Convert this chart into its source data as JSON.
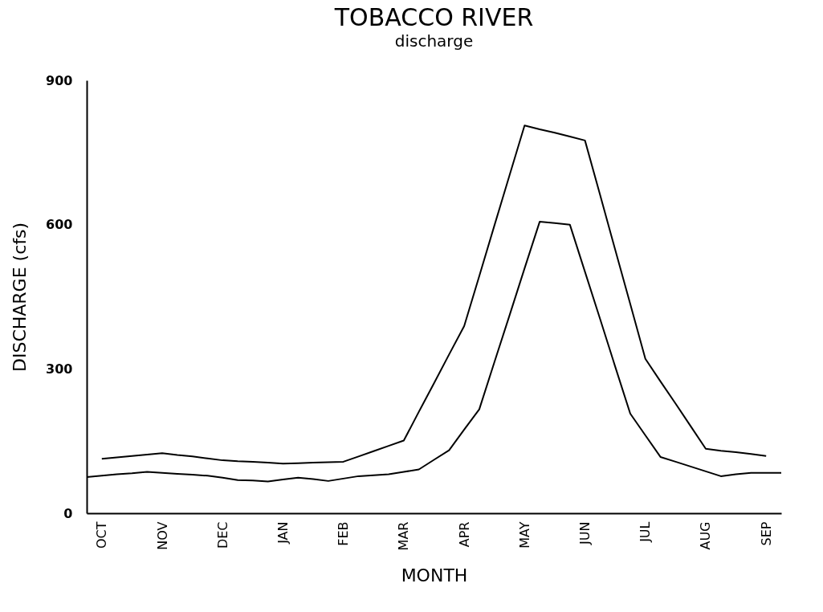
{
  "chart_data": {
    "type": "line",
    "title": "TOBACCO RIVER",
    "subtitle": "discharge",
    "xlabel": "MONTH",
    "ylabel": "DISCHARGE (cfs)",
    "categories": [
      null,
      "OCT",
      null,
      null,
      null,
      "NOV",
      null,
      null,
      null,
      "DEC",
      null,
      null,
      null,
      "JAN",
      null,
      null,
      null,
      "FEB",
      null,
      null,
      null,
      "MAR",
      null,
      null,
      null,
      "APR",
      null,
      null,
      null,
      "MAY",
      null,
      null,
      null,
      "JUN",
      null,
      null,
      null,
      "JUL",
      null,
      null,
      null,
      "AUG",
      null,
      null,
      null,
      "SEP",
      null
    ],
    "ylim": [
      0,
      900
    ],
    "yticks": [
      0,
      300,
      600,
      900
    ],
    "grid": false,
    "line_style": "solid",
    "series": [
      {
        "color": "#000000",
        "values": [
          null,
          113,
          116,
          119,
          122,
          125,
          121,
          118,
          114,
          110,
          108,
          107,
          105,
          103,
          104,
          105,
          106,
          107,
          118,
          129,
          140,
          151,
          211,
          270,
          330,
          389,
          493,
          598,
          702,
          806,
          798,
          791,
          783,
          775,
          662,
          548,
          435,
          321,
          274,
          228,
          181,
          134,
          130,
          127,
          123,
          119,
          null
        ]
      },
      {
        "color": "#000000",
        "values": [
          75,
          78,
          81,
          83,
          86,
          84,
          82,
          80,
          78,
          74,
          69,
          68,
          66,
          70,
          74,
          71,
          67,
          72,
          77,
          79,
          81,
          86,
          91,
          111,
          131,
          174,
          216,
          314,
          411,
          509,
          606,
          603,
          600,
          502,
          404,
          305,
          207,
          162,
          117,
          107,
          97,
          87,
          77,
          81,
          84,
          84,
          84
        ]
      }
    ]
  }
}
